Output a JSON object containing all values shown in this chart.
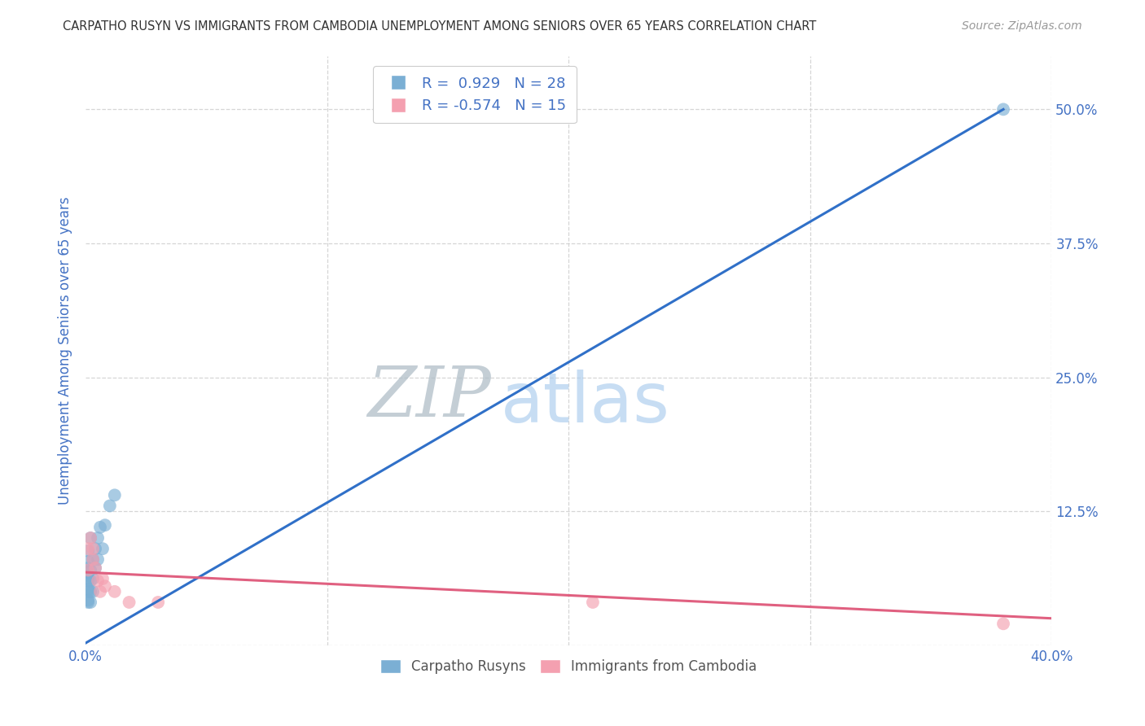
{
  "title": "CARPATHO RUSYN VS IMMIGRANTS FROM CAMBODIA UNEMPLOYMENT AMONG SENIORS OVER 65 YEARS CORRELATION CHART",
  "source": "Source: ZipAtlas.com",
  "axis_color": "#4472c4",
  "ylabel": "Unemployment Among Seniors over 65 years",
  "background_color": "#ffffff",
  "blue_color": "#7bafd4",
  "pink_color": "#f4a0b0",
  "blue_line_color": "#3070c8",
  "pink_line_color": "#e06080",
  "xlim": [
    0.0,
    0.4
  ],
  "ylim": [
    0.0,
    0.55
  ],
  "xticks": [
    0.0,
    0.1,
    0.2,
    0.3,
    0.4
  ],
  "yticks": [
    0.0,
    0.125,
    0.25,
    0.375,
    0.5
  ],
  "blue_x": [
    0.001,
    0.001,
    0.001,
    0.001,
    0.001,
    0.001,
    0.001,
    0.001,
    0.001,
    0.001,
    0.002,
    0.002,
    0.002,
    0.002,
    0.002,
    0.003,
    0.003,
    0.003,
    0.004,
    0.004,
    0.005,
    0.005,
    0.006,
    0.007,
    0.008,
    0.01,
    0.012,
    0.38
  ],
  "blue_y": [
    0.04,
    0.042,
    0.05,
    0.052,
    0.06,
    0.062,
    0.068,
    0.072,
    0.078,
    0.088,
    0.04,
    0.05,
    0.06,
    0.07,
    0.1,
    0.05,
    0.062,
    0.08,
    0.072,
    0.09,
    0.08,
    0.1,
    0.11,
    0.09,
    0.112,
    0.13,
    0.14,
    0.5
  ],
  "pink_x": [
    0.001,
    0.001,
    0.002,
    0.003,
    0.003,
    0.004,
    0.005,
    0.006,
    0.007,
    0.008,
    0.012,
    0.018,
    0.03,
    0.21,
    0.38
  ],
  "pink_y": [
    0.07,
    0.09,
    0.1,
    0.08,
    0.09,
    0.072,
    0.06,
    0.05,
    0.062,
    0.055,
    0.05,
    0.04,
    0.04,
    0.04,
    0.02
  ],
  "blue_trend_x": [
    0.0,
    0.38
  ],
  "blue_trend_y": [
    0.002,
    0.5
  ],
  "pink_trend_x": [
    0.0,
    0.4
  ],
  "pink_trend_y": [
    0.068,
    0.025
  ],
  "marker_size": 130,
  "grid_color": "#cccccc",
  "grid_style": "--",
  "grid_alpha": 0.8,
  "legend_label1": "R =  0.929   N = 28",
  "legend_label2": "R = -0.574   N = 15",
  "bottom_label1": "Carpatho Rusyns",
  "bottom_label2": "Immigrants from Cambodia"
}
